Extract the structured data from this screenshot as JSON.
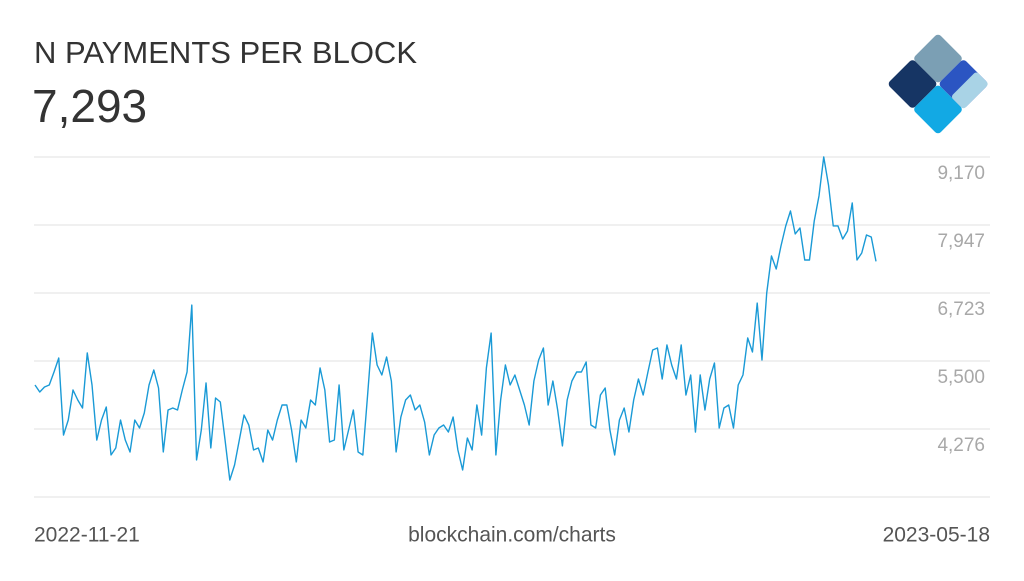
{
  "chart_data": {
    "type": "line",
    "title": "N PAYMENTS PER BLOCK",
    "current_value": "7,293",
    "color": "#1a9ad6",
    "grid": true,
    "ylim": [
      3053,
      9170
    ],
    "yticks": [
      {
        "value": 4276,
        "label": "4,276"
      },
      {
        "value": 5500,
        "label": "5,500"
      },
      {
        "value": 6723,
        "label": "6,723"
      },
      {
        "value": 7947,
        "label": "7,947"
      },
      {
        "value": 9170,
        "label": "9,170"
      }
    ],
    "x_start_label": "2022-11-21",
    "x_end_label": "2023-05-18",
    "source": "blockchain.com/charts",
    "values": [
      5068,
      4942,
      5032,
      5068,
      5302,
      5554,
      4168,
      4438,
      4978,
      4798,
      4654,
      5644,
      5068,
      4078,
      4438,
      4672,
      3809,
      3935,
      4438,
      4078,
      3863,
      4438,
      4294,
      4564,
      5068,
      5338,
      5014,
      3863,
      4618,
      4654,
      4618,
      4978,
      5302,
      6507,
      3719,
      4258,
      5104,
      3935,
      4834,
      4762,
      4078,
      3359,
      3629,
      4078,
      4528,
      4348,
      3899,
      3935,
      3683,
      4258,
      4078,
      4438,
      4708,
      4708,
      4258,
      3683,
      4438,
      4294,
      4798,
      4708,
      5374,
      4978,
      4042,
      4078,
      5068,
      3899,
      4258,
      4618,
      3863,
      3809,
      4888,
      6003,
      5428,
      5248,
      5572,
      5140,
      3863,
      4492,
      4798,
      4888,
      4618,
      4708,
      4402,
      3809,
      4168,
      4294,
      4348,
      4222,
      4492,
      3899,
      3539,
      4114,
      3899,
      4708,
      4168,
      5374,
      6003,
      3809,
      4798,
      5428,
      5068,
      5248,
      4978,
      4708,
      4348,
      5140,
      5518,
      5734,
      4708,
      5140,
      4618,
      3971,
      4798,
      5140,
      5302,
      5302,
      5482,
      4348,
      4294,
      4888,
      5014,
      4258,
      3809,
      4438,
      4654,
      4222,
      4798,
      5176,
      4888,
      5302,
      5698,
      5734,
      5176,
      5788,
      5428,
      5176,
      5788,
      4888,
      5248,
      4222,
      5248,
      4618,
      5176,
      5464,
      4294,
      4654,
      4708,
      4294,
      5068,
      5248,
      5914,
      5662,
      6543,
      5518,
      6723,
      7389,
      7155,
      7569,
      7929,
      8199,
      7785,
      7893,
      7317,
      7317,
      8019,
      8469,
      9170,
      8667,
      7929,
      7929,
      7695,
      7839,
      8343,
      7317,
      7443,
      7767,
      7731,
      7293
    ]
  }
}
